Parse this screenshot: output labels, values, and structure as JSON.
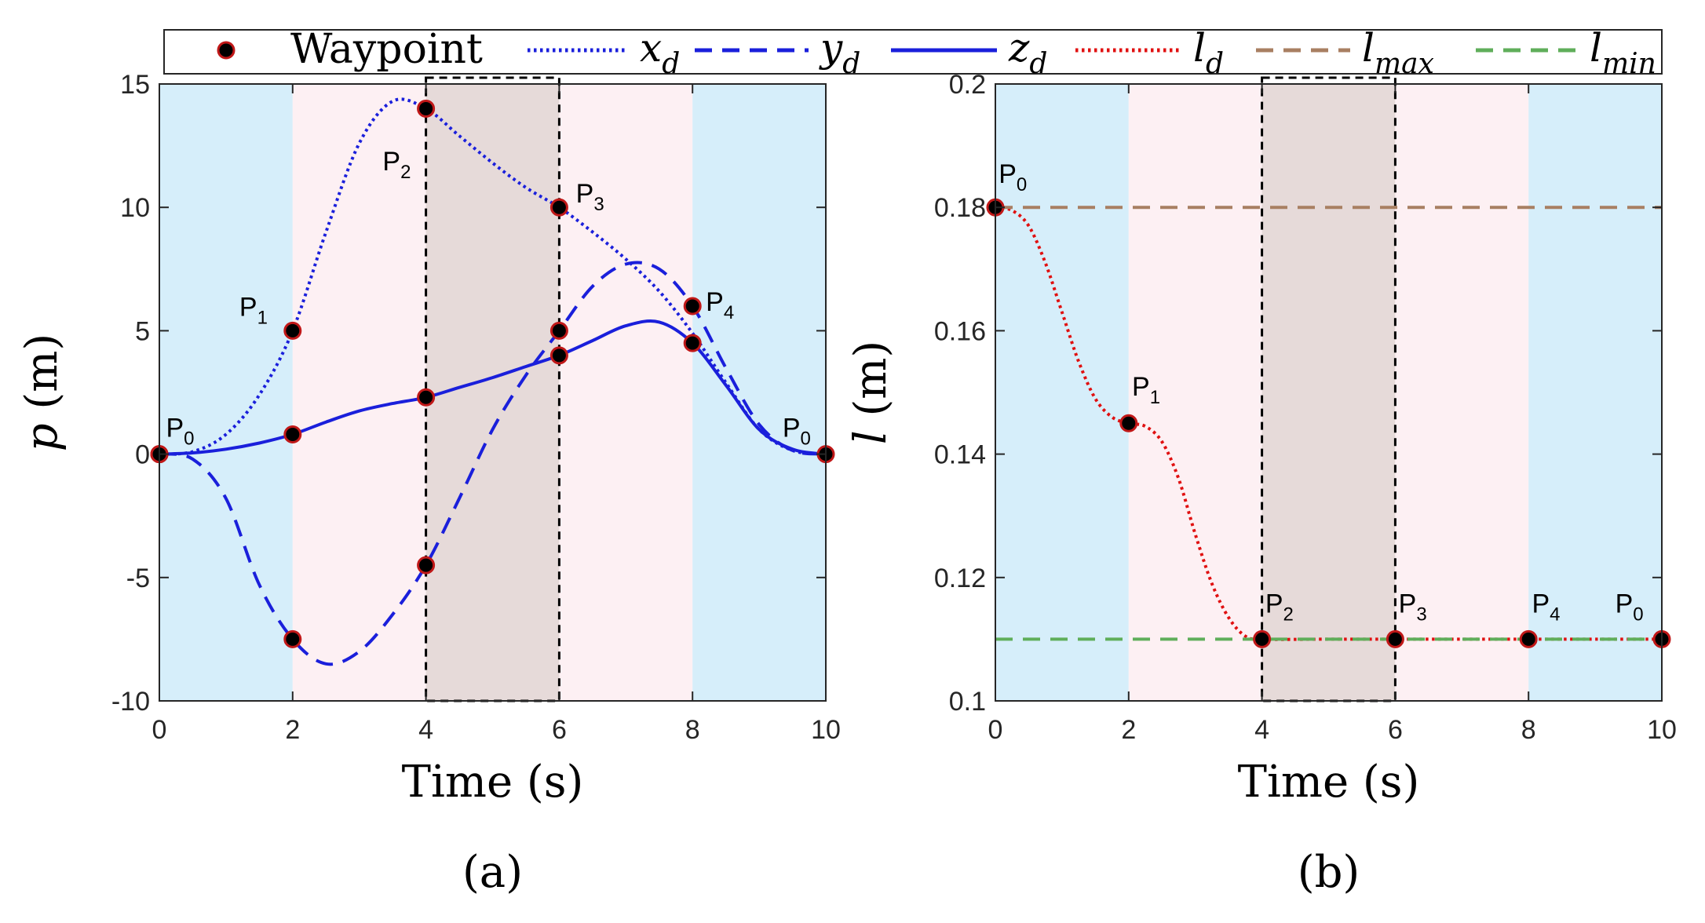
{
  "colors": {
    "blue_band": "#d6eefa",
    "pink_band": "#fdf0f3",
    "dark_band": "#e6dad9",
    "traj_blue": "#1a1fdb",
    "l_red": "#e01010",
    "l_max": "#a87f62",
    "l_min": "#5fae5a",
    "marker_edge": "#c01818"
  },
  "legend": {
    "waypoint": "Waypoint",
    "x_base": "x",
    "x_sub": "d",
    "y_base": "y",
    "y_sub": "d",
    "z_base": "z",
    "z_sub": "d",
    "l_base": "l",
    "l_sub": "d",
    "lmax_base": "l",
    "lmax_sub": "max",
    "lmin_base": "l",
    "lmin_sub": "min"
  },
  "chart_data": [
    {
      "type": "line",
      "panel": "(a)",
      "xlabel": "Time (s)",
      "ylabel_var": "p",
      "ylabel_unit": "(m)",
      "xlim": [
        0,
        10
      ],
      "ylim": [
        -10,
        15
      ],
      "xticks": [
        0,
        2,
        4,
        6,
        8,
        10
      ],
      "yticks": [
        -10,
        -5,
        0,
        5,
        10,
        15
      ],
      "bands": [
        {
          "from": 0,
          "to": 2,
          "kind": "blue"
        },
        {
          "from": 2,
          "to": 4,
          "kind": "pink"
        },
        {
          "from": 4,
          "to": 6,
          "kind": "dark"
        },
        {
          "from": 6,
          "to": 8,
          "kind": "pink"
        },
        {
          "from": 8,
          "to": 10,
          "kind": "blue"
        }
      ],
      "dashed_box": {
        "x0": 4,
        "x1": 6
      },
      "series": [
        {
          "name": "x_d",
          "style": "dotted",
          "color_key": "traj_blue",
          "x": [
            0,
            0.5,
            1,
            1.5,
            2,
            2.5,
            3,
            3.5,
            4,
            4.5,
            5,
            5.5,
            6,
            6.5,
            7,
            7.5,
            8,
            8.5,
            9,
            9.5,
            10
          ],
          "y": [
            0,
            0.1,
            0.8,
            2.4,
            5,
            9,
            12.6,
            14.3,
            14,
            12.9,
            11.8,
            10.8,
            10,
            9,
            7.9,
            6.6,
            4.9,
            2.9,
            1.0,
            0.15,
            0
          ]
        },
        {
          "name": "y_d",
          "style": "dashed",
          "color_key": "traj_blue",
          "x": [
            0,
            0.5,
            1,
            1.5,
            2,
            2.5,
            3,
            3.5,
            4,
            4.5,
            5,
            5.5,
            6,
            6.5,
            7,
            7.5,
            8,
            8.5,
            9,
            9.5,
            10
          ],
          "y": [
            0,
            -0.2,
            -1.8,
            -5.3,
            -7.5,
            -8.5,
            -8,
            -6.5,
            -4.5,
            -1.8,
            1,
            3.2,
            5,
            6.8,
            7.7,
            7.5,
            6,
            3.5,
            1.2,
            0.15,
            0
          ]
        },
        {
          "name": "z_d",
          "style": "solid",
          "color_key": "traj_blue",
          "x": [
            0,
            0.5,
            1,
            1.5,
            2,
            2.5,
            3,
            3.5,
            4,
            4.5,
            5,
            5.5,
            6,
            6.5,
            7,
            7.5,
            8,
            8.5,
            9,
            9.5,
            10
          ],
          "y": [
            0,
            0.05,
            0.2,
            0.45,
            0.8,
            1.3,
            1.75,
            2.05,
            2.3,
            2.7,
            3.1,
            3.55,
            4,
            4.6,
            5.2,
            5.35,
            4.5,
            2.8,
            1.0,
            0.2,
            0
          ]
        }
      ],
      "waypoints": [
        {
          "x": 0,
          "y": 0
        },
        {
          "x": 0,
          "y": 0
        },
        {
          "x": 0,
          "y": 0
        },
        {
          "x": 2,
          "y": 5
        },
        {
          "x": 2,
          "y": -7.5
        },
        {
          "x": 2,
          "y": 0.8
        },
        {
          "x": 4,
          "y": 14
        },
        {
          "x": 4,
          "y": -4.5
        },
        {
          "x": 4,
          "y": 2.3
        },
        {
          "x": 6,
          "y": 10
        },
        {
          "x": 6,
          "y": 5
        },
        {
          "x": 6,
          "y": 4
        },
        {
          "x": 8,
          "y": 6
        },
        {
          "x": 8,
          "y": 4.5
        },
        {
          "x": 10,
          "y": 0
        }
      ],
      "point_labels": [
        {
          "base": "P",
          "sub": "0",
          "x": 0.1,
          "y": 0.7
        },
        {
          "base": "P",
          "sub": "1",
          "x": 1.2,
          "y": 5.6
        },
        {
          "base": "P",
          "sub": "2",
          "x": 3.35,
          "y": 11.5
        },
        {
          "base": "P",
          "sub": "3",
          "x": 6.25,
          "y": 10.2
        },
        {
          "base": "P",
          "sub": "4",
          "x": 8.2,
          "y": 5.8
        },
        {
          "base": "P",
          "sub": "0",
          "x": 9.35,
          "y": 0.7
        }
      ]
    },
    {
      "type": "line",
      "panel": "(b)",
      "xlabel": "Time (s)",
      "ylabel_var": "l",
      "ylabel_unit": "(m)",
      "xlim": [
        0,
        10
      ],
      "ylim": [
        0.1,
        0.2
      ],
      "xticks": [
        0,
        2,
        4,
        6,
        8,
        10
      ],
      "yticks": [
        0.1,
        0.12,
        0.14,
        0.16,
        0.18,
        0.2
      ],
      "bands": [
        {
          "from": 0,
          "to": 2,
          "kind": "blue"
        },
        {
          "from": 2,
          "to": 4,
          "kind": "pink"
        },
        {
          "from": 4,
          "to": 6,
          "kind": "dark"
        },
        {
          "from": 6,
          "to": 8,
          "kind": "pink"
        },
        {
          "from": 8,
          "to": 10,
          "kind": "blue"
        }
      ],
      "dashed_box": {
        "x0": 4,
        "x1": 6
      },
      "series": [
        {
          "name": "l_d",
          "style": "dotted",
          "color_key": "l_red",
          "x": [
            0,
            0.25,
            0.5,
            0.75,
            1,
            1.25,
            1.5,
            1.75,
            2,
            2.25,
            2.5,
            2.75,
            3,
            3.25,
            3.5,
            3.75,
            4,
            5,
            6,
            7,
            8,
            9,
            10
          ],
          "y": [
            0.18,
            0.1795,
            0.177,
            0.171,
            0.163,
            0.155,
            0.149,
            0.146,
            0.145,
            0.1445,
            0.142,
            0.136,
            0.127,
            0.119,
            0.1135,
            0.1105,
            0.11,
            0.11,
            0.11,
            0.11,
            0.11,
            0.11,
            0.11
          ]
        },
        {
          "name": "l_max",
          "style": "dashed",
          "color_key": "l_max",
          "x": [
            0,
            10
          ],
          "y": [
            0.18,
            0.18
          ]
        },
        {
          "name": "l_min",
          "style": "dashed",
          "color_key": "l_min",
          "x": [
            0,
            10
          ],
          "y": [
            0.11,
            0.11
          ]
        }
      ],
      "waypoints": [
        {
          "x": 0,
          "y": 0.18
        },
        {
          "x": 2,
          "y": 0.145
        },
        {
          "x": 4,
          "y": 0.11
        },
        {
          "x": 6,
          "y": 0.11
        },
        {
          "x": 8,
          "y": 0.11
        },
        {
          "x": 10,
          "y": 0.11
        }
      ],
      "point_labels": [
        {
          "base": "P",
          "sub": "0",
          "x": 0.05,
          "y": 0.184
        },
        {
          "base": "P",
          "sub": "1",
          "x": 2.05,
          "y": 0.1495
        },
        {
          "base": "P",
          "sub": "2",
          "x": 4.05,
          "y": 0.1143
        },
        {
          "base": "P",
          "sub": "3",
          "x": 6.05,
          "y": 0.1143
        },
        {
          "base": "P",
          "sub": "4",
          "x": 8.05,
          "y": 0.1143
        },
        {
          "base": "P",
          "sub": "0",
          "x": 9.3,
          "y": 0.1143
        }
      ]
    }
  ]
}
